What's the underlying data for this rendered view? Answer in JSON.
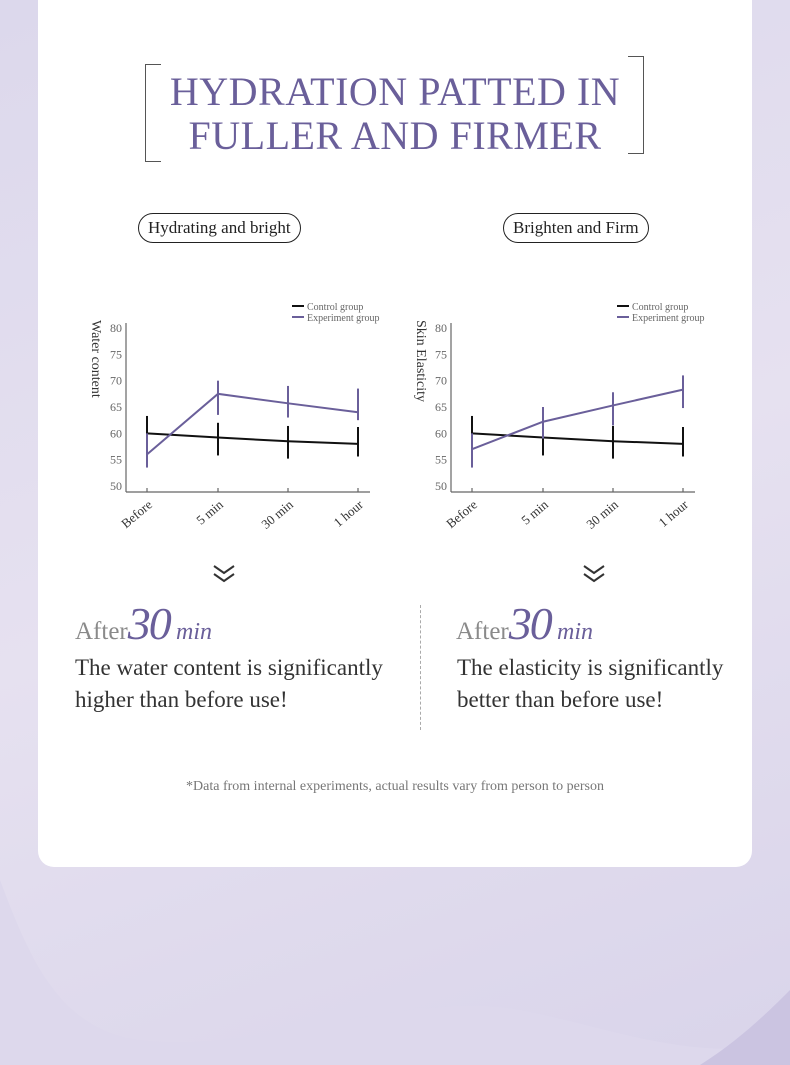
{
  "title_line1": "HYDRATION PATTED IN",
  "title_line2": "FULLER AND FIRMER",
  "colors": {
    "accent": "#6a5f9a",
    "control": "#111111",
    "experiment": "#6a5f9a"
  },
  "panels": [
    {
      "pill": "Hydrating and bright",
      "after": "After",
      "number": "30",
      "unit": "min",
      "desc": "The water content is significantly higher than before use!"
    },
    {
      "pill": "Brighten and Firm",
      "after": "After",
      "number": "30",
      "unit": "min",
      "desc": "The elasticity is significantly better than before use!"
    }
  ],
  "footnote": "*Data from internal experiments, actual results vary from person to person",
  "chart_data": [
    {
      "type": "line",
      "ylabel": "Water content",
      "categories": [
        "Before",
        "5 min",
        "30 min",
        "1 hour"
      ],
      "ylim": [
        50,
        80
      ],
      "yticks": [
        50,
        55,
        60,
        65,
        70,
        75,
        80
      ],
      "legend": "top-right",
      "series": [
        {
          "name": "Control group",
          "values": [
            60,
            59.2,
            58.5,
            58
          ],
          "err_low": [
            56.7,
            55.8,
            55.2,
            55.6
          ],
          "err_high": [
            63.3,
            62,
            61.4,
            61.2
          ]
        },
        {
          "name": "Experiment group",
          "values": [
            56,
            67.5,
            65.7,
            64
          ],
          "err_low": [
            53.5,
            63.5,
            63,
            62.5
          ],
          "err_high": [
            60,
            70,
            69,
            68.5
          ]
        }
      ]
    },
    {
      "type": "line",
      "ylabel": "Skin Elasticity",
      "categories": [
        "Before",
        "5 min",
        "30 min",
        "1 hour"
      ],
      "ylim": [
        50,
        80
      ],
      "yticks": [
        50,
        55,
        60,
        65,
        70,
        75,
        80
      ],
      "legend": "top-right",
      "series": [
        {
          "name": "Control group",
          "values": [
            60,
            59.2,
            58.5,
            58
          ],
          "err_low": [
            56.7,
            55.8,
            55.2,
            55.6
          ],
          "err_high": [
            63.3,
            62,
            61.4,
            61.2
          ]
        },
        {
          "name": "Experiment group",
          "values": [
            57,
            62.2,
            65.3,
            68.3
          ],
          "err_low": [
            53.5,
            59,
            61.5,
            64.8
          ],
          "err_high": [
            60,
            65,
            67.8,
            71
          ]
        }
      ]
    }
  ]
}
